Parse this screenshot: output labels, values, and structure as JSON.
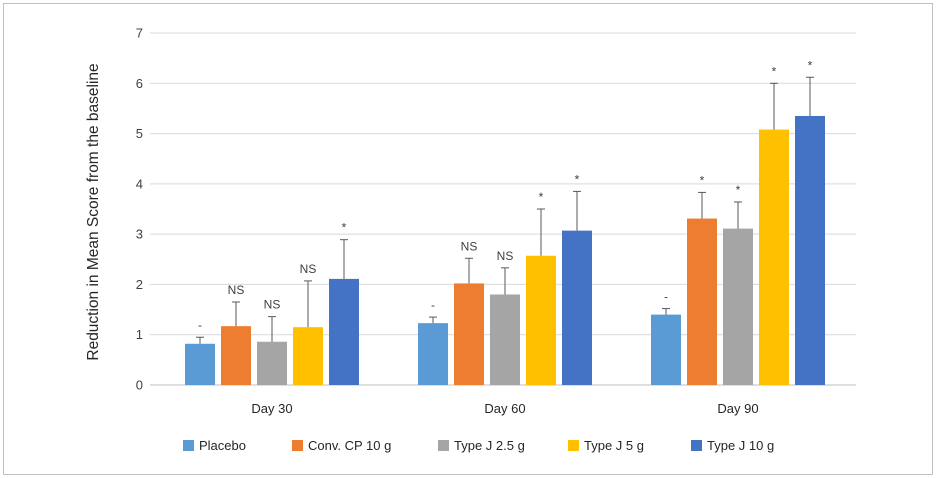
{
  "chart_data": {
    "type": "bar",
    "ylabel": "Reduction in Mean Score from the baseline",
    "xlabel": "",
    "ylim": [
      0,
      7
    ],
    "yticks": [
      "0",
      "1",
      "2",
      "3",
      "4",
      "5",
      "6",
      "7"
    ],
    "grid": true,
    "legend_position": "bottom",
    "categories": [
      "Day 30",
      "Day 60",
      "Day 90"
    ],
    "series": [
      {
        "name": "Placebo",
        "color": "#5b9bd5",
        "values": [
          0.82,
          1.23,
          1.4
        ],
        "errors": [
          0.13,
          0.12,
          0.12
        ],
        "annotations": [
          "-",
          "-",
          "-"
        ]
      },
      {
        "name": "Conv. CP 10 g",
        "color": "#ed7d31",
        "values": [
          1.17,
          2.02,
          3.31
        ],
        "errors": [
          0.48,
          0.5,
          0.52
        ],
        "annotations": [
          "NS",
          "NS",
          "*"
        ]
      },
      {
        "name": "Type J 2.5 g",
        "color": "#a5a5a5",
        "values": [
          0.86,
          1.8,
          3.11
        ],
        "errors": [
          0.5,
          0.53,
          0.53
        ],
        "annotations": [
          "NS",
          "NS",
          "*"
        ]
      },
      {
        "name": "Type J 5 g",
        "color": "#ffc000",
        "values": [
          1.15,
          2.57,
          5.08
        ],
        "errors": [
          0.92,
          0.93,
          0.92
        ],
        "annotations": [
          "NS",
          "*",
          "*"
        ]
      },
      {
        "name": "Type J 10 g",
        "color": "#4472c4",
        "values": [
          2.11,
          3.07,
          5.35
        ],
        "errors": [
          0.78,
          0.78,
          0.77
        ],
        "annotations": [
          "*",
          "*",
          "*"
        ]
      }
    ]
  }
}
